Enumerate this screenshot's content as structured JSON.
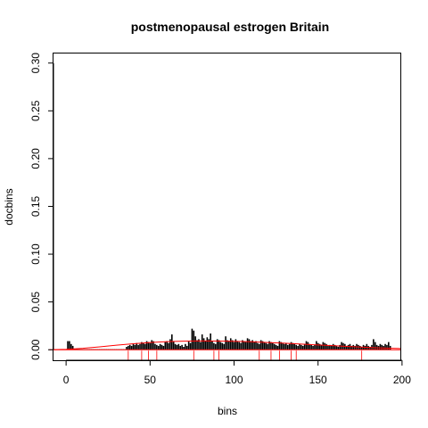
{
  "chart_data": {
    "type": "bar",
    "title": "postmenopausal estrogen Britain",
    "xlabel": "bins",
    "ylabel": "docbins",
    "xlim": [
      -7.5,
      199
    ],
    "ylim": [
      -0.011,
      0.31
    ],
    "xticks": [
      0,
      50,
      100,
      150,
      200
    ],
    "yticks": [
      0.0,
      0.05,
      0.1,
      0.15,
      0.2,
      0.25,
      0.3
    ],
    "ytick_labels": [
      "0.00",
      "0.05",
      "0.10",
      "0.15",
      "0.20",
      "0.25",
      "0.30"
    ],
    "grid": false,
    "legend": "none",
    "bars": {
      "x_start": 1,
      "values": [
        0.009,
        0.009,
        0.006,
        0.004,
        0.0,
        0.0,
        0.0,
        0.0,
        0.0,
        0.0,
        0.0,
        0.0,
        0.0,
        0.0,
        0.0,
        0.0,
        0.0,
        0.0,
        0.0,
        0.0,
        0.0,
        0.0,
        0.0,
        0.0,
        0.0,
        0.0,
        0.0,
        0.0,
        0.0,
        0.0,
        0.0,
        0.0,
        0.0,
        0.0,
        0.0,
        0.003,
        0.004,
        0.005,
        0.004,
        0.006,
        0.005,
        0.007,
        0.005,
        0.006,
        0.008,
        0.007,
        0.006,
        0.009,
        0.008,
        0.007,
        0.01,
        0.009,
        0.006,
        0.005,
        0.004,
        0.006,
        0.005,
        0.004,
        0.008,
        0.009,
        0.007,
        0.011,
        0.016,
        0.009,
        0.006,
        0.005,
        0.006,
        0.004,
        0.005,
        0.003,
        0.006,
        0.004,
        0.009,
        0.007,
        0.022,
        0.02,
        0.014,
        0.01,
        0.011,
        0.008,
        0.016,
        0.012,
        0.009,
        0.013,
        0.011,
        0.017,
        0.009,
        0.007,
        0.006,
        0.011,
        0.01,
        0.008,
        0.007,
        0.006,
        0.014,
        0.01,
        0.009,
        0.012,
        0.01,
        0.008,
        0.011,
        0.009,
        0.008,
        0.007,
        0.01,
        0.009,
        0.008,
        0.012,
        0.011,
        0.009,
        0.01,
        0.008,
        0.009,
        0.007,
        0.006,
        0.01,
        0.009,
        0.008,
        0.007,
        0.006,
        0.009,
        0.008,
        0.007,
        0.006,
        0.005,
        0.004,
        0.009,
        0.008,
        0.007,
        0.006,
        0.007,
        0.005,
        0.006,
        0.008,
        0.007,
        0.006,
        0.005,
        0.004,
        0.006,
        0.005,
        0.004,
        0.006,
        0.009,
        0.008,
        0.006,
        0.005,
        0.004,
        0.005,
        0.009,
        0.007,
        0.006,
        0.005,
        0.008,
        0.007,
        0.006,
        0.004,
        0.005,
        0.004,
        0.006,
        0.005,
        0.004,
        0.003,
        0.005,
        0.008,
        0.007,
        0.006,
        0.004,
        0.005,
        0.006,
        0.004,
        0.005,
        0.004,
        0.006,
        0.005,
        0.004,
        0.003,
        0.005,
        0.004,
        0.006,
        0.004,
        0.003,
        0.005,
        0.011,
        0.008,
        0.005,
        0.004,
        0.006,
        0.005,
        0.004,
        0.006,
        0.005,
        0.008,
        0.004
      ],
      "color": "#000000"
    },
    "density_curve": {
      "color": "#ff0000",
      "x": [
        -10,
        0,
        10,
        20,
        30,
        40,
        50,
        60,
        70,
        80,
        90,
        100,
        110,
        120,
        130,
        140,
        150,
        160,
        170,
        180,
        190,
        199
      ],
      "y": [
        0.0,
        0.0005,
        0.0015,
        0.003,
        0.0048,
        0.0063,
        0.0076,
        0.0085,
        0.009,
        0.0092,
        0.0091,
        0.0088,
        0.0083,
        0.0076,
        0.0068,
        0.0059,
        0.005,
        0.0041,
        0.0032,
        0.0024,
        0.0017,
        0.0012
      ]
    },
    "baseline": {
      "y": 0.0,
      "color": "#ff0000"
    },
    "rug": {
      "color": "#ff0000",
      "x": [
        37,
        45,
        49,
        54,
        76,
        88,
        91,
        115,
        122,
        127,
        134,
        137,
        176
      ]
    }
  }
}
